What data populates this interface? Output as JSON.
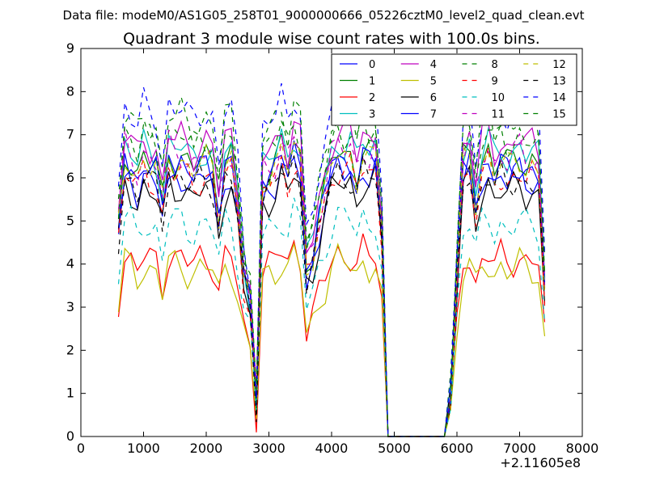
{
  "chart_data": {
    "type": "line",
    "suptitle": "Data file: modeM0/AS1G05_258T01_9000000666_05226cztM0_level2_quad_clean.evt",
    "title": "Quadrant 3 module wise count rates with 100.0s bins.",
    "xlabel": "",
    "ylabel": "",
    "x_offset_label": "+2.11605e8",
    "xlim": [
      0,
      8000
    ],
    "ylim": [
      0,
      9
    ],
    "xticks": [
      "0",
      "1000",
      "2000",
      "3000",
      "4000",
      "5000",
      "6000",
      "7000",
      "8000"
    ],
    "yticks": [
      "0",
      "1",
      "2",
      "3",
      "4",
      "5",
      "6",
      "7",
      "8",
      "9"
    ],
    "grid": false,
    "legend_position": "top-right",
    "legend_columns": 4,
    "series": [
      {
        "name": "0",
        "color": "#0000ff",
        "dash": "solid",
        "base": 6.0
      },
      {
        "name": "1",
        "color": "#008000",
        "dash": "solid",
        "base": 6.4
      },
      {
        "name": "2",
        "color": "#ff0000",
        "dash": "solid",
        "base": 4.1
      },
      {
        "name": "3",
        "color": "#00bfbf",
        "dash": "solid",
        "base": 6.6
      },
      {
        "name": "4",
        "color": "#bf00bf",
        "dash": "solid",
        "base": 6.8
      },
      {
        "name": "5",
        "color": "#bfbf00",
        "dash": "solid",
        "base": 3.9
      },
      {
        "name": "6",
        "color": "#000000",
        "dash": "solid",
        "base": 5.7
      },
      {
        "name": "7",
        "color": "#0000ff",
        "dash": "solid",
        "base": 6.2
      },
      {
        "name": "8",
        "color": "#008000",
        "dash": "dashed",
        "base": 6.9
      },
      {
        "name": "9",
        "color": "#ff0000",
        "dash": "dashed",
        "base": 6.0
      },
      {
        "name": "10",
        "color": "#00bfbf",
        "dash": "dashed",
        "base": 4.9
      },
      {
        "name": "11",
        "color": "#bf00bf",
        "dash": "dashed",
        "base": 6.5
      },
      {
        "name": "12",
        "color": "#bfbf00",
        "dash": "dashed",
        "base": 6.3
      },
      {
        "name": "13",
        "color": "#000000",
        "dash": "dashed",
        "base": 5.9
      },
      {
        "name": "14",
        "color": "#0000ff",
        "dash": "dashed",
        "base": 7.5
      },
      {
        "name": "15",
        "color": "#008000",
        "dash": "dashed",
        "base": 7.3
      }
    ],
    "x": [
      600,
      700,
      800,
      900,
      1000,
      1100,
      1200,
      1300,
      1400,
      1500,
      1600,
      1700,
      1800,
      1900,
      2000,
      2100,
      2200,
      2300,
      2400,
      2500,
      2600,
      2700,
      2800,
      2900,
      3000,
      3100,
      3200,
      3300,
      3400,
      3500,
      3600,
      3700,
      3800,
      3900,
      4000,
      4100,
      4200,
      4300,
      4400,
      4500,
      4600,
      4700,
      4800,
      4900,
      5000,
      5100,
      5200,
      5300,
      5400,
      5500,
      5600,
      5700,
      5800,
      5900,
      6000,
      6100,
      6200,
      6300,
      6400,
      6500,
      6600,
      6700,
      6800,
      6900,
      7000,
      7100,
      7200,
      7300,
      7400
    ],
    "profile": [
      0.77,
      1.03,
      1.0,
      0.95,
      1.02,
      0.99,
      0.98,
      0.85,
      1.03,
      1.01,
      1.02,
      0.99,
      0.97,
      1.0,
      1.01,
      0.99,
      0.83,
      1.01,
      1.02,
      0.85,
      0.6,
      0.5,
      0.13,
      0.95,
      0.97,
      0.99,
      1.05,
      0.98,
      1.07,
      1.01,
      0.62,
      0.68,
      0.8,
      0.9,
      1.0,
      1.04,
      1.02,
      1.03,
      0.96,
      1.04,
      1.01,
      1.03,
      0.78,
      0.0,
      0.0,
      0.0,
      0.0,
      0.0,
      0.0,
      0.0,
      0.0,
      0.0,
      0.0,
      0.15,
      0.6,
      0.99,
      1.03,
      0.86,
      1.0,
      1.04,
      0.97,
      1.01,
      0.98,
      1.0,
      1.02,
      0.99,
      1.0,
      0.98,
      0.56
    ]
  }
}
